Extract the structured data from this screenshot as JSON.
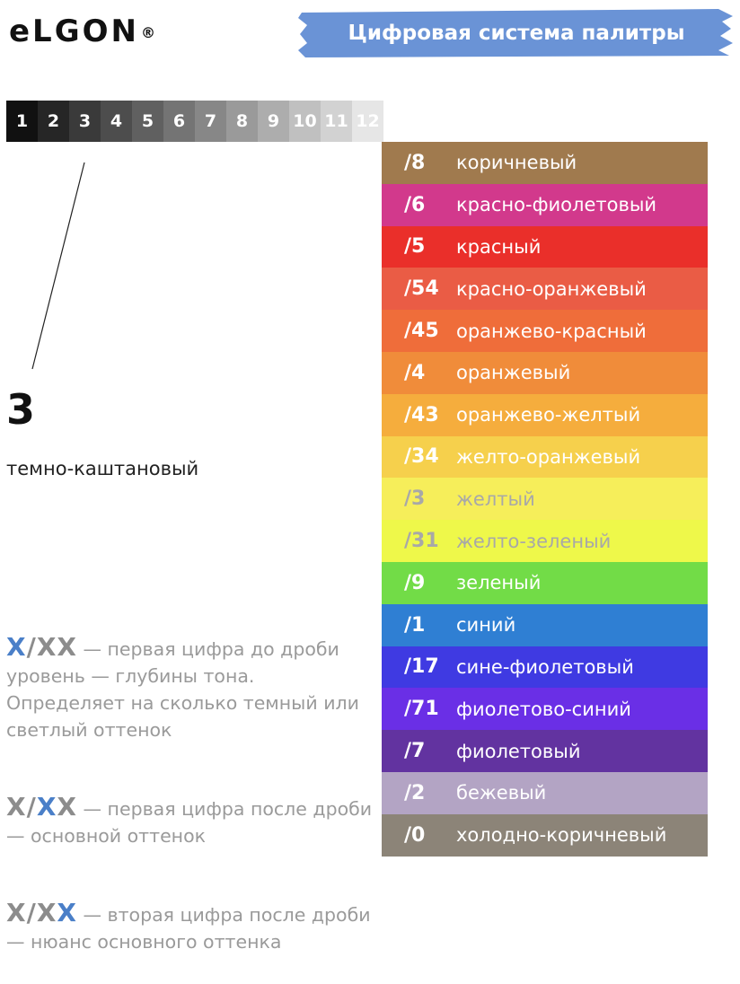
{
  "header": {
    "logo": "eLGON",
    "registered": "®",
    "title": "Цифровая система палитры",
    "banner_color": "#6a93d6"
  },
  "levels": {
    "items": [
      {
        "label": "1",
        "bg": "#111111",
        "fg": "#ffffff"
      },
      {
        "label": "2",
        "bg": "#262626",
        "fg": "#ffffff"
      },
      {
        "label": "3",
        "bg": "#3a3a3a",
        "fg": "#ffffff"
      },
      {
        "label": "4",
        "bg": "#4d4d4d",
        "fg": "#ffffff"
      },
      {
        "label": "5",
        "bg": "#606060",
        "fg": "#ffffff"
      },
      {
        "label": "6",
        "bg": "#747474",
        "fg": "#ffffff"
      },
      {
        "label": "7",
        "bg": "#878787",
        "fg": "#ffffff"
      },
      {
        "label": "8",
        "bg": "#9a9a9a",
        "fg": "#ffffff"
      },
      {
        "label": "9",
        "bg": "#adadad",
        "fg": "#ffffff"
      },
      {
        "label": "10",
        "bg": "#c0c0c0",
        "fg": "#ffffff"
      },
      {
        "label": "11",
        "bg": "#d2d2d2",
        "fg": "#ffffff"
      },
      {
        "label": "12",
        "bg": "#e6e6e6",
        "fg": "#ffffff"
      }
    ],
    "selected": {
      "number": "3",
      "name": "темно-каштановый"
    }
  },
  "palette": [
    {
      "code": "/8",
      "name": "коричневый",
      "bg": "#a07a4e",
      "fg": "#ffffff"
    },
    {
      "code": "/6",
      "name": "красно-фиолетовый",
      "bg": "#d2398c",
      "fg": "#ffffff"
    },
    {
      "code": "/5",
      "name": "красный",
      "bg": "#ea2f2a",
      "fg": "#ffffff"
    },
    {
      "code": "/54",
      "name": "красно-оранжевый",
      "bg": "#ea5c45",
      "fg": "#ffffff"
    },
    {
      "code": "/45",
      "name": "оранжево-красный",
      "bg": "#ef6d3a",
      "fg": "#ffffff"
    },
    {
      "code": "/4",
      "name": "оранжевый",
      "bg": "#f08c3a",
      "fg": "#ffffff"
    },
    {
      "code": "/43",
      "name": "оранжево-желтый",
      "bg": "#f5ad3d",
      "fg": "#ffffff"
    },
    {
      "code": "/34",
      "name": "желто-оранжевый",
      "bg": "#f6d04c",
      "fg": "#ffffff"
    },
    {
      "code": "/3",
      "name": "желтый",
      "bg": "#f6ee5a",
      "fg": "#a8a8a8"
    },
    {
      "code": "/31",
      "name": "желто-зеленый",
      "bg": "#eef84a",
      "fg": "#a8a8a8"
    },
    {
      "code": "/9",
      "name": "зеленый",
      "bg": "#72dc47",
      "fg": "#ffffff"
    },
    {
      "code": "/1",
      "name": "синий",
      "bg": "#2f7fd3",
      "fg": "#ffffff"
    },
    {
      "code": "/17",
      "name": "сине-фиолетовый",
      "bg": "#3f3ae2",
      "fg": "#ffffff"
    },
    {
      "code": "/71",
      "name": "фиолетово-синий",
      "bg": "#6a2fe6",
      "fg": "#ffffff"
    },
    {
      "code": "/7",
      "name": "фиолетовый",
      "bg": "#6233a0",
      "fg": "#ffffff"
    },
    {
      "code": "/2",
      "name": "бежевый",
      "bg": "#b3a4c4",
      "fg": "#ffffff"
    },
    {
      "code": "/0",
      "name": "холодно-коричневый",
      "bg": "#8c8478",
      "fg": "#ffffff"
    }
  ],
  "explanations": [
    {
      "prefix": "",
      "highlight": "X",
      "suffix": "/XX",
      "text": " — первая цифра до дроби уровень  — глубины тона. Определяет на сколько темный или светлый оттенок"
    },
    {
      "prefix": "X/",
      "highlight": "X",
      "suffix": "X",
      "text": " — первая цифра после дроби  — основной оттенок"
    },
    {
      "prefix": "X/X",
      "highlight": "X",
      "suffix": "",
      "text": " — вторая цифра после дроби — нюанс основного оттенка"
    }
  ],
  "accent_color": "#4a7fc8"
}
